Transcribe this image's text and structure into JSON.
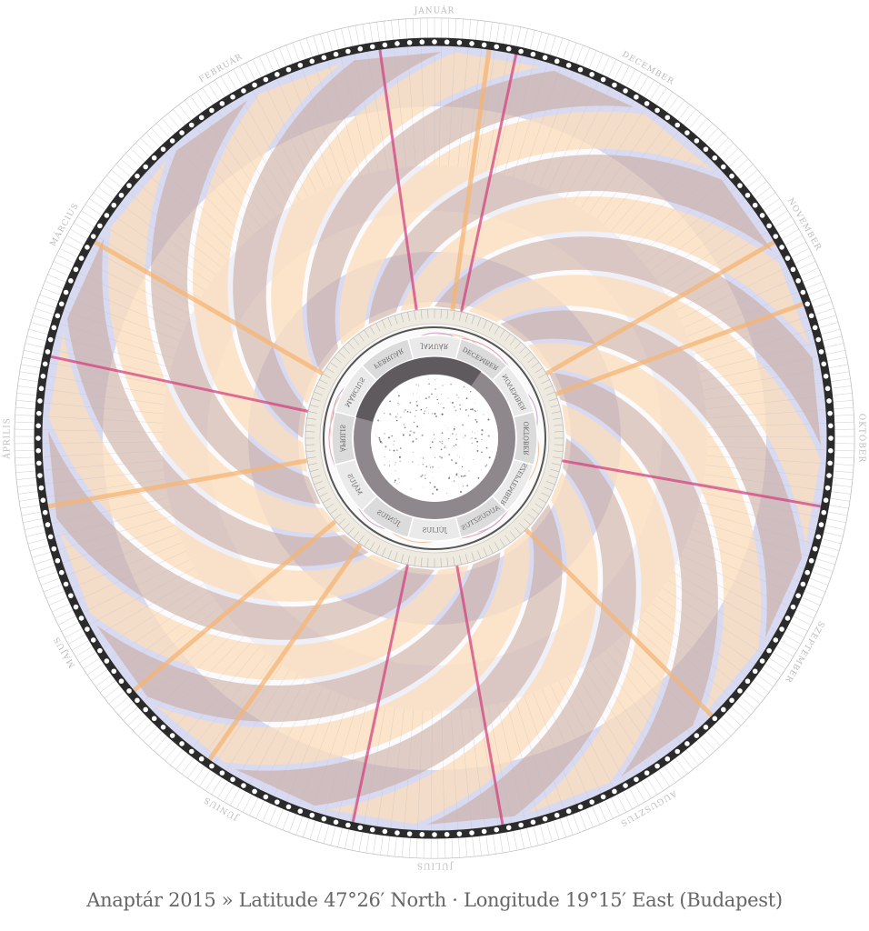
{
  "caption": "Anaptár 2015 » Latitude 47°26′ North · Longitude 19°15′ East (Budapest)",
  "outer_months": [
    "JANUÁR",
    "FEBRUÁR",
    "MÁRCIUS",
    "ÁPRILIS",
    "MÁJUS",
    "JÚNIUS",
    "JÚLIUS",
    "AUGUSZTUS",
    "SZEPTEMBER",
    "OKTÓBER",
    "NOVEMBER",
    "DECEMBER"
  ],
  "inner_months": [
    "JANUÁR",
    "FEBRUÁR",
    "MÁRCIUS",
    "ÁPRILIS",
    "MÁJUS",
    "JÚNIUS",
    "JÚLIUS",
    "AUGUSZTUS",
    "SZEPTEMBER",
    "OKTÓBER",
    "NOVEMBER",
    "DECEMBER"
  ],
  "colors": {
    "blade_brown": "#c9a597",
    "blade_peach": "#fcdcb9",
    "band_blue": "#d8daf1",
    "accent_pink": "#d3437f",
    "accent_orange": "#f6b676",
    "ring_dark": "#2b2b2b",
    "inner_ring": "#8e878b"
  }
}
